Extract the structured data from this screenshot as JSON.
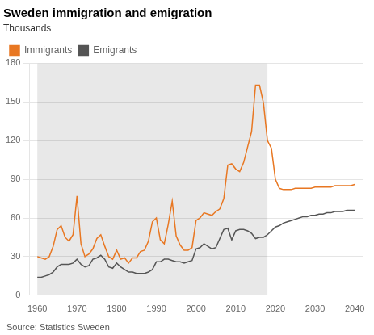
{
  "chart_data": {
    "type": "line",
    "title": "Sweden immigration and emigration",
    "subtitle": "Thousands",
    "source": "Source: Statistics Sweden",
    "x": [
      1960,
      1961,
      1962,
      1963,
      1964,
      1965,
      1966,
      1967,
      1968,
      1969,
      1970,
      1971,
      1972,
      1973,
      1974,
      1975,
      1976,
      1977,
      1978,
      1979,
      1980,
      1981,
      1982,
      1983,
      1984,
      1985,
      1986,
      1987,
      1988,
      1989,
      1990,
      1991,
      1992,
      1993,
      1994,
      1995,
      1996,
      1997,
      1998,
      1999,
      2000,
      2001,
      2002,
      2003,
      2004,
      2005,
      2006,
      2007,
      2008,
      2009,
      2010,
      2011,
      2012,
      2013,
      2014,
      2015,
      2016,
      2017,
      2018,
      2019,
      2020,
      2021,
      2022,
      2023,
      2024,
      2025,
      2026,
      2027,
      2028,
      2029,
      2030,
      2031,
      2032,
      2033,
      2034,
      2035,
      2036,
      2037,
      2038,
      2039,
      2040
    ],
    "series": [
      {
        "name": "Immigrants",
        "color": "#E87722",
        "values": [
          30,
          29,
          28,
          30,
          38,
          51,
          54,
          45,
          42,
          47,
          77,
          40,
          30,
          32,
          36,
          44,
          47,
          38,
          30,
          28,
          35,
          28,
          29,
          25,
          29,
          29,
          34,
          35,
          42,
          57,
          60,
          43,
          40,
          55,
          73,
          46,
          39,
          35,
          35,
          37,
          58,
          60,
          64,
          63,
          62,
          65,
          67,
          75,
          101,
          102,
          98,
          96,
          103,
          115,
          127,
          163,
          163,
          149,
          120,
          114,
          90,
          83,
          82,
          82,
          82,
          83,
          83,
          83,
          83,
          83,
          84,
          84,
          84,
          84,
          84,
          85,
          85,
          85,
          85,
          85,
          86
        ]
      },
      {
        "name": "Emigrants",
        "color": "#555555",
        "values": [
          14,
          14,
          15,
          16,
          18,
          22,
          24,
          24,
          24,
          25,
          28,
          24,
          22,
          23,
          28,
          29,
          31,
          28,
          22,
          21,
          25,
          22,
          20,
          18,
          18,
          17,
          17,
          17,
          18,
          20,
          26,
          26,
          28,
          28,
          27,
          26,
          26,
          25,
          26,
          27,
          36,
          37,
          40,
          38,
          36,
          37,
          44,
          51,
          52,
          43,
          50,
          51,
          51,
          50,
          48,
          44,
          45,
          45,
          47,
          50,
          53,
          54,
          56,
          57,
          58,
          59,
          60,
          61,
          61,
          62,
          62,
          63,
          63,
          64,
          64,
          65,
          65,
          65,
          66,
          66,
          66
        ]
      }
    ],
    "shaded_region": {
      "x": [
        1960,
        2018
      ],
      "color": "#e8e8e8"
    },
    "xlim": [
      1958,
      2042
    ],
    "xticks": [
      1960,
      1970,
      1980,
      1990,
      2000,
      2010,
      2020,
      2030,
      2040
    ],
    "ylim": [
      0,
      180
    ],
    "yticks": [
      0,
      30,
      60,
      90,
      120,
      150,
      180
    ],
    "grid": "y",
    "legend": "upper left"
  }
}
